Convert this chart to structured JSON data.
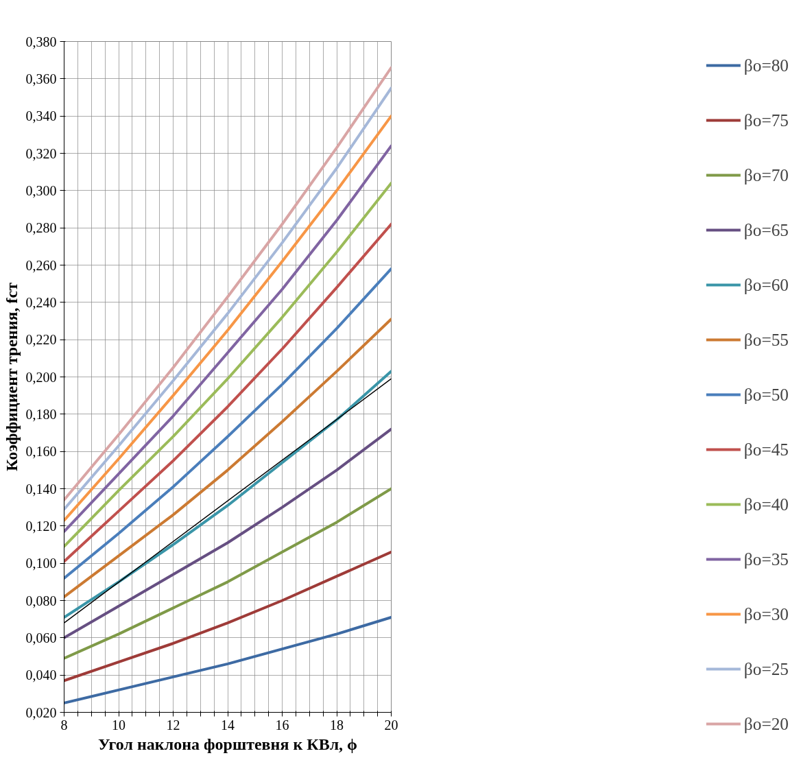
{
  "chart_data": {
    "type": "line",
    "xlabel": "Угол наклона форштевня к КВл, ϕ",
    "ylabel": "Коэффициент трения, fст",
    "x": [
      8,
      10,
      12,
      14,
      16,
      18,
      20
    ],
    "xlim": [
      8,
      20
    ],
    "xticks": [
      8,
      {
        "value": 8.5,
        "label": null
      },
      {
        "value": 9,
        "label": null
      },
      {
        "value": 9.5,
        "label": null
      },
      10,
      {
        "value": 10.5,
        "label": null
      },
      {
        "value": 11,
        "label": null
      },
      {
        "value": 11.5,
        "label": null
      },
      12,
      {
        "value": 12.5,
        "label": null
      },
      {
        "value": 13,
        "label": null
      },
      {
        "value": 13.5,
        "label": null
      },
      14,
      {
        "value": 14.5,
        "label": null
      },
      {
        "value": 15,
        "label": null
      },
      {
        "value": 15.5,
        "label": null
      },
      16,
      {
        "value": 16.5,
        "label": null
      },
      {
        "value": 17,
        "label": null
      },
      {
        "value": 17.5,
        "label": null
      },
      18,
      {
        "value": 18.5,
        "label": null
      },
      {
        "value": 19,
        "label": null
      },
      {
        "value": 19.5,
        "label": null
      },
      20
    ],
    "ylim": [
      0.02,
      0.38
    ],
    "yticks": [
      {
        "value": 0.02,
        "label": "0,020"
      },
      {
        "value": 0.04,
        "label": "0,040"
      },
      {
        "value": 0.06,
        "label": "0,060"
      },
      {
        "value": 0.08,
        "label": "0,080"
      },
      {
        "value": 0.1,
        "label": "0,100"
      },
      {
        "value": 0.12,
        "label": "0,120"
      },
      {
        "value": 0.14,
        "label": "0,140"
      },
      {
        "value": 0.16,
        "label": "0,160"
      },
      {
        "value": 0.18,
        "label": "0,180"
      },
      {
        "value": 0.2,
        "label": "0,200"
      },
      {
        "value": 0.22,
        "label": "0,220"
      },
      {
        "value": 0.24,
        "label": "0,240"
      },
      {
        "value": 0.26,
        "label": "0,260"
      },
      {
        "value": 0.28,
        "label": "0,280"
      },
      {
        "value": 0.3,
        "label": "0,300"
      },
      {
        "value": 0.32,
        "label": "0,320"
      },
      {
        "value": 0.34,
        "label": "0,340"
      },
      {
        "value": 0.36,
        "label": "0,360"
      },
      {
        "value": 0.38,
        "label": "0,380"
      }
    ],
    "grid": true,
    "legend": "right",
    "marker": "none",
    "line_style": "solid",
    "series": [
      {
        "name": "βo=80",
        "color": "#3d6aa3",
        "values": [
          0.025,
          0.032,
          0.039,
          0.046,
          0.054,
          0.062,
          0.071
        ]
      },
      {
        "name": "βo=75",
        "color": "#9e3b38",
        "values": [
          0.037,
          0.047,
          0.057,
          0.068,
          0.08,
          0.093,
          0.106
        ]
      },
      {
        "name": "βo=70",
        "color": "#7f9a48",
        "values": [
          0.049,
          0.062,
          0.076,
          0.09,
          0.106,
          0.122,
          0.14
        ]
      },
      {
        "name": "βo=65",
        "color": "#664f82",
        "values": [
          0.06,
          0.077,
          0.094,
          0.111,
          0.13,
          0.15,
          0.172
        ]
      },
      {
        "name": "βo=60",
        "color": "#3a95a8",
        "values": [
          0.071,
          0.09,
          0.11,
          0.131,
          0.154,
          0.177,
          0.203
        ]
      },
      {
        "name": "βo=55",
        "color": "#cc7a32",
        "values": [
          0.082,
          0.104,
          0.126,
          0.15,
          0.176,
          0.203,
          0.231
        ]
      },
      {
        "name": "βo=50",
        "color": "#4a7ebb",
        "values": [
          0.092,
          0.116,
          0.141,
          0.168,
          0.196,
          0.226,
          0.258
        ]
      },
      {
        "name": "βo=45",
        "color": "#c0504d",
        "values": [
          0.101,
          0.128,
          0.155,
          0.184,
          0.215,
          0.248,
          0.282
        ]
      },
      {
        "name": "βo=40",
        "color": "#9bbb59",
        "values": [
          0.109,
          0.139,
          0.168,
          0.199,
          0.232,
          0.267,
          0.304
        ]
      },
      {
        "name": "βo=35",
        "color": "#8064a2",
        "values": [
          0.117,
          0.148,
          0.179,
          0.213,
          0.247,
          0.284,
          0.324
        ]
      },
      {
        "name": "βo=30",
        "color": "#f79646",
        "values": [
          0.123,
          0.156,
          0.19,
          0.225,
          0.262,
          0.3,
          0.34
        ]
      },
      {
        "name": "βo=25",
        "color": "#a5b8d9",
        "values": [
          0.129,
          0.163,
          0.198,
          0.234,
          0.272,
          0.312,
          0.355
        ]
      },
      {
        "name": "βo=20",
        "color": "#d9a5a5",
        "values": [
          0.134,
          0.169,
          0.205,
          0.243,
          0.282,
          0.323,
          0.366
        ]
      },
      {
        "type": "line",
        "color": "#000000",
        "x": [
          8,
          20
        ],
        "values": [
          0.068,
          0.199
        ]
      }
    ]
  }
}
